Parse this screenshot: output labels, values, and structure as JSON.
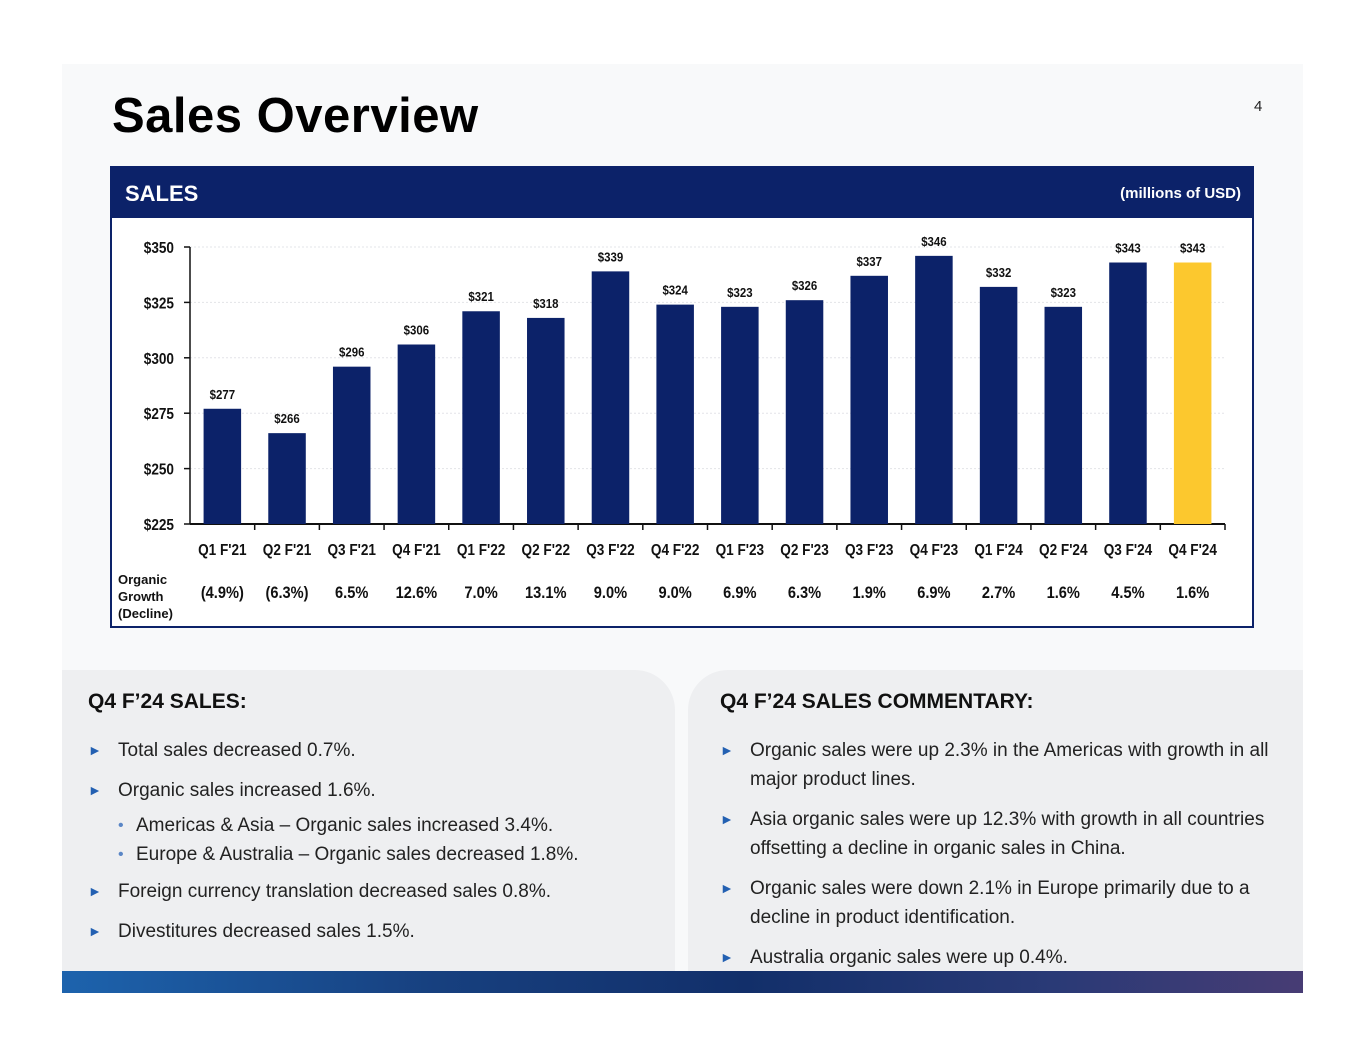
{
  "title": "Sales Overview",
  "page_number": "4",
  "chart_header": {
    "title": "SALES",
    "units": "(millions of USD)"
  },
  "growth_label": [
    "Organic",
    "Growth",
    "(Decline)"
  ],
  "colors": {
    "bar": "#0c2269",
    "highlight": "#fcc82e",
    "header": "#0c2269",
    "arrow": "#2360b2"
  },
  "chart_data": {
    "type": "bar",
    "title": "SALES",
    "ylabel": "millions of USD",
    "ylim": [
      225,
      350
    ],
    "yticks": [
      225,
      250,
      275,
      300,
      325,
      350
    ],
    "ytick_labels": [
      "$225",
      "$250",
      "$275",
      "$300",
      "$325",
      "$350"
    ],
    "categories": [
      "Q1 F'21",
      "Q2 F'21",
      "Q3 F'21",
      "Q4 F'21",
      "Q1 F'22",
      "Q2 F'22",
      "Q3 F'22",
      "Q4 F'22",
      "Q1 F'23",
      "Q2 F'23",
      "Q3 F'23",
      "Q4 F'23",
      "Q1 F'24",
      "Q2 F'24",
      "Q3 F'24",
      "Q4 F'24"
    ],
    "values": [
      277,
      266,
      296,
      306,
      321,
      318,
      339,
      324,
      323,
      326,
      337,
      346,
      332,
      323,
      343,
      343
    ],
    "value_labels": [
      "$277",
      "$266",
      "$296",
      "$306",
      "$321",
      "$318",
      "$339",
      "$324",
      "$323",
      "$326",
      "$337",
      "$346",
      "$332",
      "$323",
      "$343",
      "$343"
    ],
    "organic_growth": [
      "(4.9%)",
      "(6.3%)",
      "6.5%",
      "12.6%",
      "7.0%",
      "13.1%",
      "9.0%",
      "9.0%",
      "6.9%",
      "6.3%",
      "1.9%",
      "6.9%",
      "2.7%",
      "1.6%",
      "4.5%",
      "1.6%"
    ],
    "highlight_index": 15
  },
  "left_panel": {
    "title": "Q4 F’24 SALES:",
    "b1": "Total sales decreased 0.7%.",
    "b2": "Organic sales increased 1.6%.",
    "s1": "Americas & Asia – Organic sales increased 3.4%.",
    "s2": "Europe & Australia – Organic sales decreased 1.8%.",
    "b3": "Foreign currency translation decreased sales 0.8%.",
    "b4": "Divestitures decreased sales 1.5%."
  },
  "right_panel": {
    "title": "Q4 F’24 SALES COMMENTARY:",
    "b1": "Organic sales were up 2.3% in the Americas with growth in all major product lines.",
    "b2": "Asia organic sales were up 12.3% with growth in all countries offsetting a decline in organic sales in China.",
    "b3": "Organic sales were down 2.1% in Europe primarily due to a decline in product identification.",
    "b4": "Australia organic sales were up 0.4%."
  },
  "bullet_glyph": "►",
  "sub_glyph": "•"
}
